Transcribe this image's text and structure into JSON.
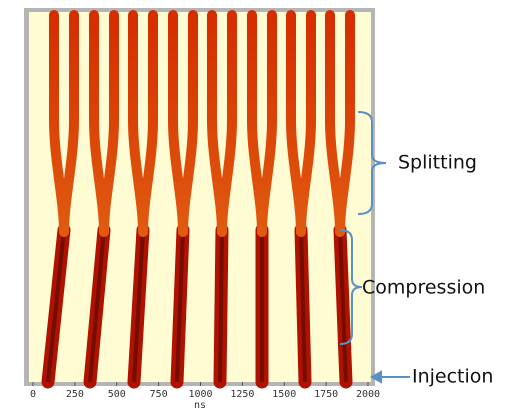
{
  "chart_data": {
    "type": "image",
    "xlabel": "ns",
    "xlim": [
      0,
      2000
    ],
    "xticks": [
      0,
      250,
      500,
      750,
      1000,
      1250,
      1500,
      1750,
      2000
    ],
    "annotations": [
      "Splitting",
      "Compression",
      "Injection"
    ]
  }
}
